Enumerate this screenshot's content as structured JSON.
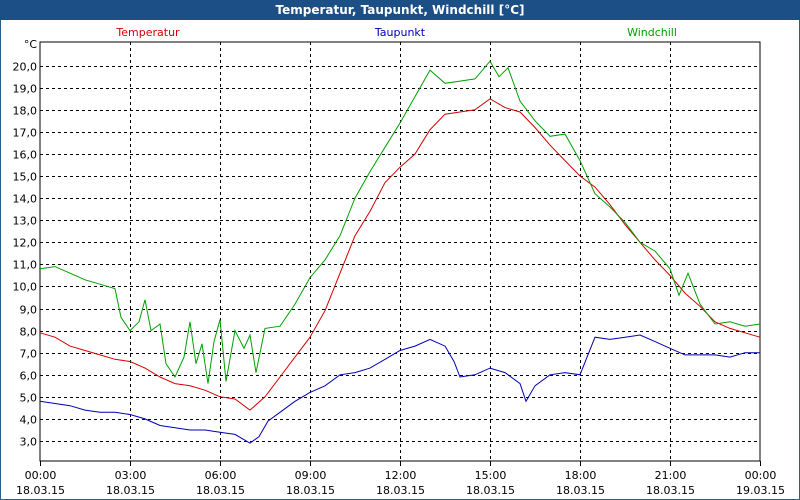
{
  "window": {
    "title": "Temperatur, Taupunkt, Windchill [°C]"
  },
  "chart_data": {
    "type": "line",
    "title": "Temperatur, Taupunkt, Windchill [°C]",
    "y_unit": "°C",
    "ylim": [
      2.0,
      20.5
    ],
    "yticks": [
      "20,0",
      "19,0",
      "18,0",
      "17,0",
      "16,0",
      "15,0",
      "14,0",
      "13,0",
      "12,0",
      "11,0",
      "10,0",
      "9,0",
      "8,0",
      "7,0",
      "6,0",
      "5,0",
      "4,0",
      "3,0"
    ],
    "xticks": [
      {
        "time": "00:00",
        "date": "18.03.15"
      },
      {
        "time": "03:00",
        "date": "18.03.15"
      },
      {
        "time": "06:00",
        "date": "18.03.15"
      },
      {
        "time": "09:00",
        "date": "18.03.15"
      },
      {
        "time": "12:00",
        "date": "18.03.15"
      },
      {
        "time": "15:00",
        "date": "18.03.15"
      },
      {
        "time": "18:00",
        "date": "18.03.15"
      },
      {
        "time": "21:00",
        "date": "18.03.15"
      },
      {
        "time": "00:00",
        "date": "19.03.15"
      }
    ],
    "xlim_hours": [
      0,
      24
    ],
    "grid": true,
    "series": [
      {
        "name": "Temperatur",
        "color": "#d40000",
        "points": [
          [
            0,
            7.9
          ],
          [
            0.5,
            7.7
          ],
          [
            1,
            7.3
          ],
          [
            1.5,
            7.1
          ],
          [
            2,
            6.9
          ],
          [
            2.5,
            6.7
          ],
          [
            3,
            6.6
          ],
          [
            3.5,
            6.3
          ],
          [
            4,
            5.9
          ],
          [
            4.5,
            5.6
          ],
          [
            5,
            5.5
          ],
          [
            5.5,
            5.3
          ],
          [
            6,
            5.0
          ],
          [
            6.5,
            4.9
          ],
          [
            7,
            4.4
          ],
          [
            7.5,
            5.0
          ],
          [
            8,
            5.9
          ],
          [
            8.5,
            6.8
          ],
          [
            9,
            7.7
          ],
          [
            9.5,
            8.9
          ],
          [
            10,
            10.6
          ],
          [
            10.5,
            12.3
          ],
          [
            11,
            13.4
          ],
          [
            11.5,
            14.7
          ],
          [
            12,
            15.4
          ],
          [
            12.5,
            16.0
          ],
          [
            13,
            17.1
          ],
          [
            13.5,
            17.8
          ],
          [
            14,
            17.9
          ],
          [
            14.5,
            18.0
          ],
          [
            15,
            18.5
          ],
          [
            15.5,
            18.1
          ],
          [
            16,
            17.9
          ],
          [
            16.5,
            17.2
          ],
          [
            17,
            16.4
          ],
          [
            17.5,
            15.7
          ],
          [
            18,
            15.0
          ],
          [
            18.5,
            14.5
          ],
          [
            19,
            13.7
          ],
          [
            19.5,
            12.8
          ],
          [
            20,
            12.0
          ],
          [
            20.5,
            11.2
          ],
          [
            21,
            10.5
          ],
          [
            21.5,
            9.7
          ],
          [
            22,
            9.1
          ],
          [
            22.5,
            8.4
          ],
          [
            23,
            8.1
          ],
          [
            23.5,
            7.9
          ],
          [
            24,
            7.7
          ]
        ]
      },
      {
        "name": "Taupunkt",
        "color": "#0000b4",
        "points": [
          [
            0,
            4.8
          ],
          [
            0.5,
            4.7
          ],
          [
            1,
            4.6
          ],
          [
            1.5,
            4.4
          ],
          [
            2,
            4.3
          ],
          [
            2.5,
            4.3
          ],
          [
            3,
            4.2
          ],
          [
            3.5,
            4.0
          ],
          [
            4,
            3.7
          ],
          [
            4.5,
            3.6
          ],
          [
            5,
            3.5
          ],
          [
            5.5,
            3.5
          ],
          [
            6,
            3.4
          ],
          [
            6.5,
            3.3
          ],
          [
            7,
            2.9
          ],
          [
            7.3,
            3.2
          ],
          [
            7.6,
            3.9
          ],
          [
            8,
            4.3
          ],
          [
            8.5,
            4.8
          ],
          [
            9,
            5.2
          ],
          [
            9.5,
            5.5
          ],
          [
            10,
            6.0
          ],
          [
            10.5,
            6.1
          ],
          [
            11,
            6.3
          ],
          [
            11.5,
            6.7
          ],
          [
            12,
            7.1
          ],
          [
            12.5,
            7.3
          ],
          [
            13,
            7.6
          ],
          [
            13.5,
            7.3
          ],
          [
            13.8,
            6.6
          ],
          [
            14,
            5.9
          ],
          [
            14.5,
            6.0
          ],
          [
            15,
            6.3
          ],
          [
            15.5,
            6.1
          ],
          [
            16,
            5.6
          ],
          [
            16.2,
            4.8
          ],
          [
            16.5,
            5.5
          ],
          [
            17,
            6.0
          ],
          [
            17.5,
            6.1
          ],
          [
            18,
            6.0
          ],
          [
            18.5,
            7.7
          ],
          [
            19,
            7.6
          ],
          [
            19.5,
            7.7
          ],
          [
            20,
            7.8
          ],
          [
            20.5,
            7.5
          ],
          [
            21,
            7.2
          ],
          [
            21.5,
            6.9
          ],
          [
            22,
            6.9
          ],
          [
            22.5,
            6.9
          ],
          [
            23,
            6.8
          ],
          [
            23.5,
            7.0
          ],
          [
            24,
            7.0
          ]
        ]
      },
      {
        "name": "Windchill",
        "color": "#00a000",
        "points": [
          [
            0,
            10.8
          ],
          [
            0.5,
            10.9
          ],
          [
            1,
            10.6
          ],
          [
            1.5,
            10.3
          ],
          [
            2,
            10.1
          ],
          [
            2.5,
            9.9
          ],
          [
            2.7,
            8.6
          ],
          [
            3,
            8.0
          ],
          [
            3.3,
            8.4
          ],
          [
            3.5,
            9.4
          ],
          [
            3.7,
            8.0
          ],
          [
            4,
            8.3
          ],
          [
            4.2,
            6.5
          ],
          [
            4.5,
            5.9
          ],
          [
            4.8,
            6.8
          ],
          [
            5,
            8.4
          ],
          [
            5.2,
            6.5
          ],
          [
            5.4,
            7.4
          ],
          [
            5.6,
            5.6
          ],
          [
            5.8,
            7.5
          ],
          [
            6,
            8.5
          ],
          [
            6.2,
            5.7
          ],
          [
            6.5,
            8.0
          ],
          [
            6.8,
            7.2
          ],
          [
            7,
            7.8
          ],
          [
            7.2,
            6.1
          ],
          [
            7.5,
            8.1
          ],
          [
            8,
            8.2
          ],
          [
            8.5,
            9.2
          ],
          [
            9,
            10.4
          ],
          [
            9.5,
            11.2
          ],
          [
            10,
            12.3
          ],
          [
            10.5,
            14.0
          ],
          [
            11,
            15.2
          ],
          [
            11.5,
            16.3
          ],
          [
            12,
            17.4
          ],
          [
            12.5,
            18.6
          ],
          [
            13,
            19.8
          ],
          [
            13.5,
            19.2
          ],
          [
            14,
            19.3
          ],
          [
            14.5,
            19.4
          ],
          [
            15,
            20.2
          ],
          [
            15.3,
            19.5
          ],
          [
            15.6,
            19.9
          ],
          [
            16,
            18.4
          ],
          [
            16.5,
            17.5
          ],
          [
            17,
            16.8
          ],
          [
            17.5,
            16.9
          ],
          [
            18,
            15.7
          ],
          [
            18.5,
            14.2
          ],
          [
            19,
            13.6
          ],
          [
            19.5,
            12.9
          ],
          [
            20,
            12.0
          ],
          [
            20.5,
            11.6
          ],
          [
            21,
            10.8
          ],
          [
            21.3,
            9.6
          ],
          [
            21.6,
            10.6
          ],
          [
            22,
            9.2
          ],
          [
            22.5,
            8.3
          ],
          [
            23,
            8.4
          ],
          [
            23.5,
            8.2
          ],
          [
            24,
            8.3
          ]
        ]
      }
    ]
  }
}
